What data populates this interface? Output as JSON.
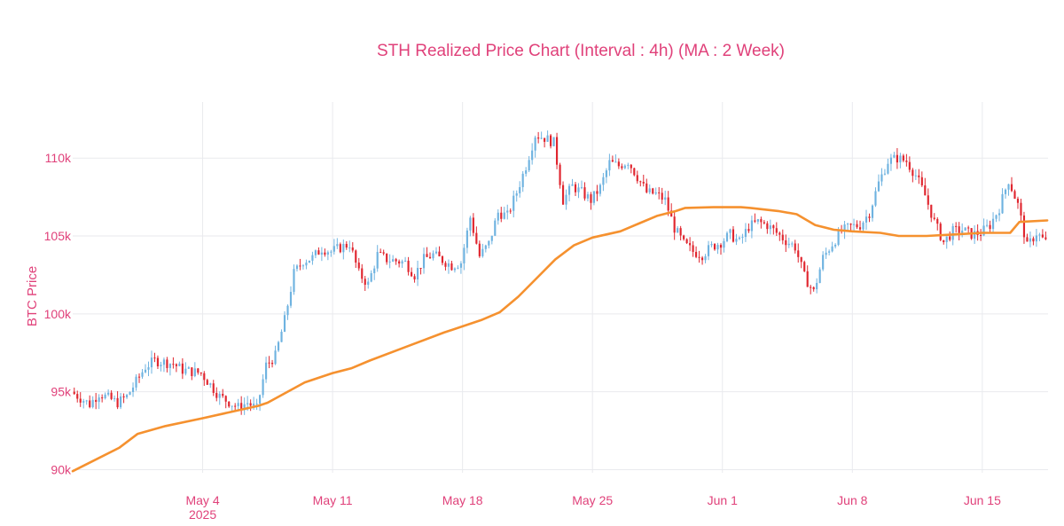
{
  "colors": {
    "text": "#e0417a",
    "grid": "#e9eaee",
    "up": "#6fb3e0",
    "down": "#e0262f",
    "ma": "#f5912f"
  },
  "chart_data": {
    "type": "candlestick",
    "title": "STH Realized Price Chart (Interval : 4h) (MA : 2 Week)",
    "ylabel": "BTC Price",
    "ylim": [
      89800,
      113600
    ],
    "xlim": [
      "2025-04-27T00:00",
      "2025-06-18T13:00"
    ],
    "x_ticks": [
      {
        "date": "2025-05-04",
        "label": "May 4",
        "sublabel": "2025"
      },
      {
        "date": "2025-05-11",
        "label": "May 11",
        "sublabel": ""
      },
      {
        "date": "2025-05-18",
        "label": "May 18",
        "sublabel": ""
      },
      {
        "date": "2025-05-25",
        "label": "May 25",
        "sublabel": ""
      },
      {
        "date": "2025-06-01",
        "label": "Jun 1",
        "sublabel": ""
      },
      {
        "date": "2025-06-08",
        "label": "Jun 8",
        "sublabel": ""
      },
      {
        "date": "2025-06-15",
        "label": "Jun 15",
        "sublabel": ""
      }
    ],
    "y_ticks": [
      {
        "value": 90000,
        "label": "90k"
      },
      {
        "value": 95000,
        "label": "95k"
      },
      {
        "value": 100000,
        "label": "100k"
      },
      {
        "value": 105000,
        "label": "105k"
      },
      {
        "value": 110000,
        "label": "110k"
      }
    ],
    "close_path": [
      [
        "2025-04-27T00:00",
        95000
      ],
      [
        "2025-04-28T00:00",
        94200
      ],
      [
        "2025-04-28T12:00",
        94900
      ],
      [
        "2025-04-29T12:00",
        94300
      ],
      [
        "2025-04-30T00:00",
        94700
      ],
      [
        "2025-05-01T00:00",
        96600
      ],
      [
        "2025-05-01T12:00",
        97000
      ],
      [
        "2025-05-02T12:00",
        96800
      ],
      [
        "2025-05-03T00:00",
        96400
      ],
      [
        "2025-05-04T00:00",
        96200
      ],
      [
        "2025-05-05T00:00",
        94700
      ],
      [
        "2025-05-06T00:00",
        94000
      ],
      [
        "2025-05-06T12:00",
        94300
      ],
      [
        "2025-05-07T00:00",
        93900
      ],
      [
        "2025-05-07T12:00",
        96700
      ],
      [
        "2025-05-08T00:00",
        97300
      ],
      [
        "2025-05-08T12:00",
        99600
      ],
      [
        "2025-05-09T00:00",
        102600
      ],
      [
        "2025-05-09T12:00",
        103400
      ],
      [
        "2025-05-10T00:00",
        103600
      ],
      [
        "2025-05-10T12:00",
        104200
      ],
      [
        "2025-05-11T00:00",
        104000
      ],
      [
        "2025-05-12T00:00",
        104500
      ],
      [
        "2025-05-12T12:00",
        102600
      ],
      [
        "2025-05-13T00:00",
        101900
      ],
      [
        "2025-05-13T12:00",
        103800
      ],
      [
        "2025-05-14T00:00",
        103500
      ],
      [
        "2025-05-15T00:00",
        103300
      ],
      [
        "2025-05-15T12:00",
        102500
      ],
      [
        "2025-05-16T00:00",
        103500
      ],
      [
        "2025-05-16T12:00",
        103800
      ],
      [
        "2025-05-17T12:00",
        103100
      ],
      [
        "2025-05-18T00:00",
        103300
      ],
      [
        "2025-05-18T12:00",
        106200
      ],
      [
        "2025-05-19T00:00",
        103700
      ],
      [
        "2025-05-19T12:00",
        104500
      ],
      [
        "2025-05-20T00:00",
        106500
      ],
      [
        "2025-05-20T12:00",
        106300
      ],
      [
        "2025-05-21T00:00",
        107800
      ],
      [
        "2025-05-21T12:00",
        109500
      ],
      [
        "2025-05-22T00:00",
        111500
      ],
      [
        "2025-05-22T12:00",
        111300
      ],
      [
        "2025-05-23T00:00",
        111000
      ],
      [
        "2025-05-23T12:00",
        107300
      ],
      [
        "2025-05-24T00:00",
        108200
      ],
      [
        "2025-05-24T12:00",
        107800
      ],
      [
        "2025-05-25T00:00",
        107300
      ],
      [
        "2025-05-25T12:00",
        108100
      ],
      [
        "2025-05-26T00:00",
        109700
      ],
      [
        "2025-05-26T12:00",
        109500
      ],
      [
        "2025-05-27T00:00",
        109800
      ],
      [
        "2025-05-27T12:00",
        108800
      ],
      [
        "2025-05-28T00:00",
        107800
      ],
      [
        "2025-05-28T12:00",
        107700
      ],
      [
        "2025-05-29T00:00",
        107300
      ],
      [
        "2025-05-29T12:00",
        105500
      ],
      [
        "2025-05-30T00:00",
        104500
      ],
      [
        "2025-05-30T12:00",
        104000
      ],
      [
        "2025-05-31T00:00",
        103800
      ],
      [
        "2025-05-31T12:00",
        104300
      ],
      [
        "2025-06-01T00:00",
        104600
      ],
      [
        "2025-06-01T12:00",
        105100
      ],
      [
        "2025-06-02T00:00",
        104600
      ],
      [
        "2025-06-02T12:00",
        105600
      ],
      [
        "2025-06-03T00:00",
        105900
      ],
      [
        "2025-06-03T12:00",
        105700
      ],
      [
        "2025-06-04T00:00",
        105200
      ],
      [
        "2025-06-04T12:00",
        104700
      ],
      [
        "2025-06-05T00:00",
        104300
      ],
      [
        "2025-06-05T12:00",
        102400
      ],
      [
        "2025-06-06T00:00",
        101400
      ],
      [
        "2025-06-06T12:00",
        103600
      ],
      [
        "2025-06-07T00:00",
        104500
      ],
      [
        "2025-06-07T12:00",
        105300
      ],
      [
        "2025-06-08T00:00",
        105600
      ],
      [
        "2025-06-08T12:00",
        105700
      ],
      [
        "2025-06-09T00:00",
        106500
      ],
      [
        "2025-06-09T12:00",
        108400
      ],
      [
        "2025-06-10T00:00",
        109800
      ],
      [
        "2025-06-10T12:00",
        110000
      ],
      [
        "2025-06-11T00:00",
        109800
      ],
      [
        "2025-06-11T12:00",
        108900
      ],
      [
        "2025-06-12T00:00",
        107600
      ],
      [
        "2025-06-12T12:00",
        105900
      ],
      [
        "2025-06-13T00:00",
        104600
      ],
      [
        "2025-06-13T12:00",
        105300
      ],
      [
        "2025-06-14T00:00",
        105400
      ],
      [
        "2025-06-14T12:00",
        105100
      ],
      [
        "2025-06-15T00:00",
        105200
      ],
      [
        "2025-06-15T12:00",
        105700
      ],
      [
        "2025-06-16T00:00",
        106800
      ],
      [
        "2025-06-16T12:00",
        108600
      ],
      [
        "2025-06-17T00:00",
        107000
      ],
      [
        "2025-06-17T12:00",
        104300
      ],
      [
        "2025-06-18T00:00",
        105200
      ],
      [
        "2025-06-18T12:00",
        104600
      ]
    ],
    "ma_series": {
      "points": [
        [
          "2025-04-27T00:00",
          89900
        ],
        [
          "2025-04-28T00:00",
          90500
        ],
        [
          "2025-04-29T12:00",
          91400
        ],
        [
          "2025-04-30T12:00",
          92300
        ],
        [
          "2025-05-02T00:00",
          92800
        ],
        [
          "2025-05-04T00:00",
          93300
        ],
        [
          "2025-05-05T12:00",
          93700
        ],
        [
          "2025-05-07T00:00",
          94100
        ],
        [
          "2025-05-07T12:00",
          94300
        ],
        [
          "2025-05-09T12:00",
          95600
        ],
        [
          "2025-05-11T00:00",
          96200
        ],
        [
          "2025-05-12T00:00",
          96500
        ],
        [
          "2025-05-13T00:00",
          97000
        ],
        [
          "2025-05-15T00:00",
          97900
        ],
        [
          "2025-05-17T00:00",
          98800
        ],
        [
          "2025-05-19T00:00",
          99600
        ],
        [
          "2025-05-20T00:00",
          100100
        ],
        [
          "2025-05-21T00:00",
          101100
        ],
        [
          "2025-05-22T00:00",
          102300
        ],
        [
          "2025-05-23T00:00",
          103500
        ],
        [
          "2025-05-24T00:00",
          104400
        ],
        [
          "2025-05-25T00:00",
          104900
        ],
        [
          "2025-05-26T12:00",
          105300
        ],
        [
          "2025-05-27T12:00",
          105800
        ],
        [
          "2025-05-28T12:00",
          106300
        ],
        [
          "2025-05-29T12:00",
          106600
        ],
        [
          "2025-05-30T00:00",
          106800
        ],
        [
          "2025-05-31T12:00",
          106850
        ],
        [
          "2025-06-02T00:00",
          106850
        ],
        [
          "2025-06-02T12:00",
          106800
        ],
        [
          "2025-06-04T00:00",
          106600
        ],
        [
          "2025-06-05T00:00",
          106400
        ],
        [
          "2025-06-06T00:00",
          105700
        ],
        [
          "2025-06-07T00:00",
          105400
        ],
        [
          "2025-06-08T00:00",
          105300
        ],
        [
          "2025-06-09T12:00",
          105200
        ],
        [
          "2025-06-10T12:00",
          105000
        ],
        [
          "2025-06-12T00:00",
          105000
        ],
        [
          "2025-06-13T12:00",
          105100
        ],
        [
          "2025-06-15T00:00",
          105200
        ],
        [
          "2025-06-16T12:00",
          105200
        ],
        [
          "2025-06-17T00:00",
          105900
        ],
        [
          "2025-06-18T12:00",
          106000
        ]
      ]
    }
  }
}
